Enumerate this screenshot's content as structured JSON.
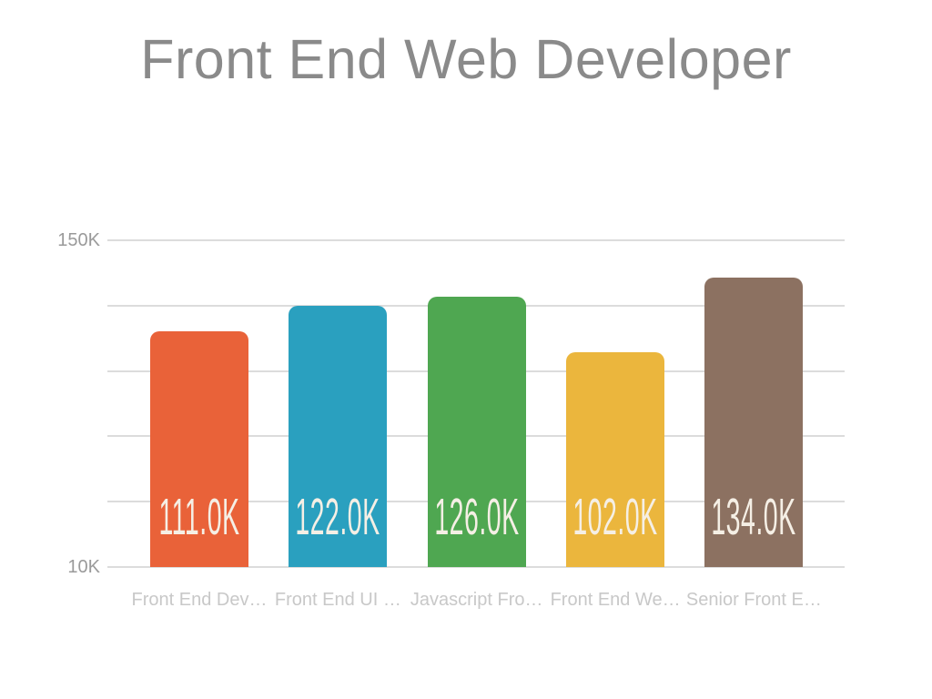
{
  "title": "Front End Web Developer",
  "chart_data": {
    "type": "bar",
    "title": "Front End Web Developer",
    "categories": [
      "Front End Dev…",
      "Front End UI …",
      "Javascript Fro…",
      "Front End We…",
      "Senior Front E…"
    ],
    "values": [
      111.0,
      122.0,
      126.0,
      102.0,
      134.0
    ],
    "value_labels": [
      "111.0K",
      "122.0K",
      "126.0K",
      "102.0K",
      "134.0K"
    ],
    "units": "K",
    "bar_colors": [
      "#E96239",
      "#2AA0BF",
      "#4FA751",
      "#EBB63D",
      "#8C7161"
    ],
    "value_label_color": "#F5EFE5",
    "xlabel": "",
    "ylabel": "",
    "ylim": [
      10,
      150
    ],
    "yticks": [
      {
        "value": 150,
        "label": "150K"
      },
      {
        "value": 10,
        "label": "10K"
      }
    ],
    "gridline_values": [
      150,
      122,
      94,
      66,
      38,
      10
    ],
    "grid": true,
    "legend": false,
    "background": "#FFFFFF",
    "title_color": "#8A8A8A",
    "axis_label_color": "#9A9A9A",
    "category_label_color": "#C8C8C8",
    "gridline_color": "#DCDCDC"
  }
}
